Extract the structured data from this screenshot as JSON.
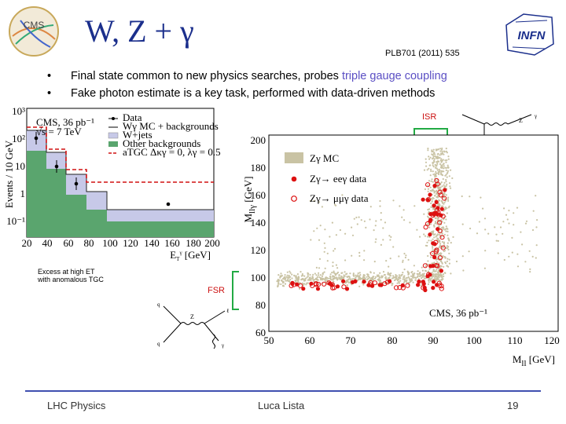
{
  "header": {
    "title": "W, Z + γ",
    "reference": "PLB701 (2011) 535",
    "logo_left": "CMS",
    "logo_right": "INFN"
  },
  "bullets": [
    {
      "pre": "Final state common to new physics searches, probes ",
      "highlight": "triple gauge coupling",
      "post": ""
    },
    {
      "pre": "Fake photon estimate is a key task, performed with data-driven methods",
      "highlight": "",
      "post": ""
    }
  ],
  "colors": {
    "title": "#1b2f8c",
    "highlight": "#5b4fc4",
    "data_red": "#dd1111",
    "mc_fill": "#c9c3a4"
  },
  "left_plot": {
    "ylabel": "Events / 10 GeV",
    "xlabel": "E",
    "xlabel_sub": "T",
    "xlabel_sup": "γ",
    "xlabel_unit": " [GeV]",
    "yticks": [
      "10³",
      "10²",
      "10",
      "1",
      "10⁻¹"
    ],
    "xticks": [
      "20",
      "40",
      "60",
      "80",
      "100",
      "120",
      "140",
      "160",
      "180",
      "200"
    ],
    "cms_label": "CMS, 36 pb⁻¹",
    "energy_label": "√s = 7 TeV",
    "legend": [
      "Data",
      "Wγ MC + backgrounds",
      "W+jets",
      "Other backgrounds",
      "aTGC Δκγ = 0, λγ = 0.5"
    ]
  },
  "annotations": {
    "excess_line1": "Excess at high ET",
    "excess_line2": "with anomalous TGC",
    "isr": "ISR",
    "fsr": "FSR"
  },
  "main_plot": {
    "ylabel": "M",
    "ylabel_sub": "llγ",
    "ylabel_unit": " [GeV]",
    "xlabel": "M",
    "xlabel_sub": "ll",
    "xlabel_unit": " [GeV]",
    "yticks": [
      "200",
      "180",
      "160",
      "140",
      "120",
      "100",
      "80",
      "60"
    ],
    "xticks": [
      "50",
      "60",
      "70",
      "80",
      "90",
      "100",
      "110",
      "120"
    ],
    "legend": [
      "Zγ MC",
      "Zγ→ eeγ data",
      "Zγ→ μμγ data"
    ],
    "cms_label": "CMS, 36 pb⁻¹"
  },
  "footer": {
    "left": "LHC Physics",
    "center": "Luca Lista",
    "page": "19"
  }
}
